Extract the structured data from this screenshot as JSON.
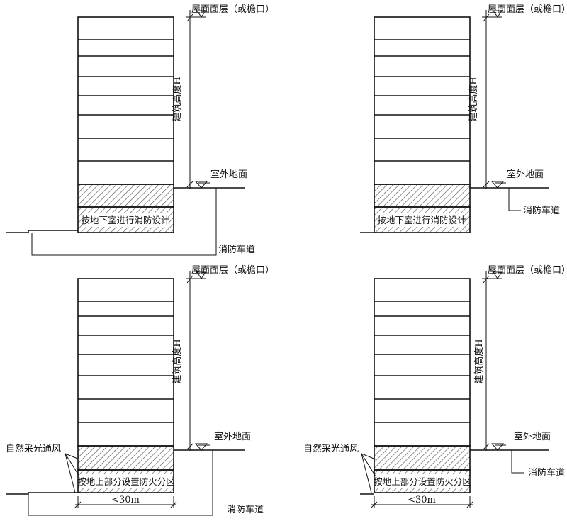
{
  "panels": [
    {
      "id": "top-left",
      "roof_label": "屋面面层（或檐口）",
      "height_label": "建筑高度H",
      "ground_label": "室外地面",
      "basement_label": "按地下室进行消防设计",
      "road_label": "消防车道",
      "side_label": "",
      "width_label": ""
    },
    {
      "id": "top-right",
      "roof_label": "屋面面层（或檐口）",
      "height_label": "建筑高度H",
      "ground_label": "室外地面",
      "basement_label": "按地下室进行消防设计",
      "road_label": "消防车道",
      "side_label": "",
      "width_label": ""
    },
    {
      "id": "bottom-left",
      "roof_label": "屋面面层（或檐口）",
      "height_label": "建筑高度H",
      "ground_label": "室外地面",
      "basement_label": "按地上部分设置防火分区",
      "road_label": "消防车道",
      "side_label": "自然采光通风",
      "width_label": "<30m"
    },
    {
      "id": "bottom-right",
      "roof_label": "屋面面层（或檐口）",
      "height_label": "建筑高度H",
      "ground_label": "室外地面",
      "basement_label": "按地上部分设置防火分区",
      "road_label": "消防车道",
      "side_label": "自然采光通风",
      "width_label": "<30m"
    }
  ]
}
